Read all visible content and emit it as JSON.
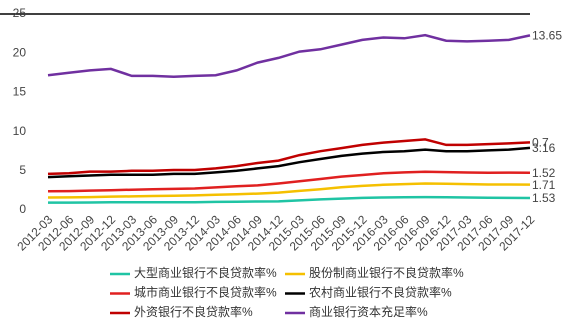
{
  "chart_data": {
    "type": "line",
    "stacked": true,
    "categories": [
      "2012-03",
      "2012-06",
      "2012-09",
      "2012-12",
      "2013-03",
      "2013-06",
      "2013-09",
      "2013-12",
      "2014-03",
      "2014-06",
      "2014-09",
      "2014-12",
      "2015-03",
      "2015-06",
      "2015-09",
      "2015-12",
      "2016-03",
      "2016-06",
      "2016-09",
      "2016-12",
      "2017-03",
      "2017-06",
      "2017-09",
      "2017-12"
    ],
    "series": [
      {
        "name": "大型商业银行不良贷款率%",
        "color": "#1fc4a4",
        "values": [
          0.95,
          0.95,
          0.96,
          0.99,
          0.98,
          0.99,
          1.0,
          1.0,
          1.03,
          1.06,
          1.08,
          1.1,
          1.23,
          1.35,
          1.46,
          1.54,
          1.6,
          1.62,
          1.65,
          1.62,
          1.59,
          1.56,
          1.54,
          1.53
        ]
      },
      {
        "name": "股份制商业银行不良贷款率%",
        "color": "#f5c000",
        "values": [
          0.64,
          0.66,
          0.69,
          0.72,
          0.75,
          0.79,
          0.83,
          0.86,
          0.91,
          0.96,
          1.01,
          1.12,
          1.2,
          1.3,
          1.43,
          1.53,
          1.62,
          1.68,
          1.73,
          1.74,
          1.71,
          1.69,
          1.71,
          1.71
        ]
      },
      {
        "name": "城市商业银行不良贷款率%",
        "color": "#e02020",
        "values": [
          0.8,
          0.8,
          0.82,
          0.81,
          0.86,
          0.86,
          0.86,
          0.88,
          0.94,
          1.02,
          1.05,
          1.16,
          1.23,
          1.3,
          1.37,
          1.4,
          1.46,
          1.49,
          1.5,
          1.48,
          1.48,
          1.5,
          1.52,
          1.52
        ]
      },
      {
        "name": "农村商业银行不良贷款率%",
        "color": "#000000",
        "values": [
          1.81,
          1.89,
          1.93,
          1.98,
          1.91,
          1.86,
          1.91,
          1.86,
          1.92,
          1.96,
          2.16,
          2.22,
          2.44,
          2.55,
          2.64,
          2.73,
          2.72,
          2.71,
          2.82,
          2.66,
          2.72,
          2.85,
          2.93,
          3.16
        ]
      },
      {
        "name": "外资银行不良贷款率%",
        "color": "#c00000",
        "values": [
          0.4,
          0.4,
          0.5,
          0.4,
          0.5,
          0.5,
          0.5,
          0.5,
          0.5,
          0.6,
          0.7,
          0.7,
          0.9,
          1.0,
          1.0,
          1.1,
          1.2,
          1.3,
          1.3,
          0.8,
          0.8,
          0.8,
          0.8,
          0.7
        ]
      },
      {
        "name": "商业银行资本充足率%",
        "color": "#7030a0",
        "values": [
          12.6,
          12.8,
          12.9,
          13.1,
          12.1,
          12.1,
          11.9,
          12.0,
          11.9,
          12.2,
          12.8,
          13.1,
          13.2,
          13.0,
          13.2,
          13.4,
          13.4,
          13.1,
          13.3,
          13.3,
          13.2,
          13.2,
          13.2,
          13.65
        ]
      }
    ],
    "ylim": [
      0,
      25
    ],
    "yticks": [
      0,
      5,
      10,
      15,
      20,
      25
    ]
  }
}
